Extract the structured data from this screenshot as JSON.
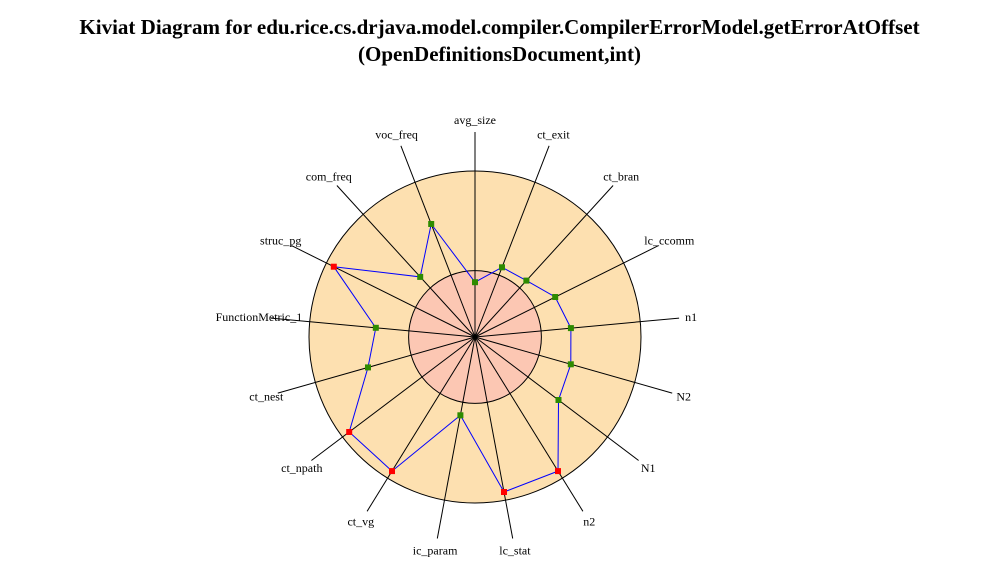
{
  "title_line1": "Kiviat Diagram for edu.rice.cs.drjava.model.compiler.CompilerErrorModel.getErrorAtOffset",
  "title_line2": "(OpenDefinitionsDocument,int)",
  "colors": {
    "outer_fill": "#fde0b0",
    "inner_fill": "#fcc7b3",
    "polygon": "#0000ff",
    "ok_point": "#2e8b00",
    "bad_point": "#ff0000",
    "axis": "#000000"
  },
  "chart_data": {
    "type": "radar",
    "title": "Kiviat Diagram for edu.rice.cs.drjava.model.compiler.CompilerErrorModel.getErrorAtOffset (OpenDefinitionsDocument,int)",
    "range": [
      0,
      1
    ],
    "inner_band": 0.4,
    "axes": [
      {
        "label": "avg_size",
        "value": 0.33,
        "status": "ok"
      },
      {
        "label": "ct_exit",
        "value": 0.45,
        "status": "ok"
      },
      {
        "label": "ct_bran",
        "value": 0.46,
        "status": "ok"
      },
      {
        "label": "lc_ccomm",
        "value": 0.54,
        "status": "ok"
      },
      {
        "label": "n1",
        "value": 0.58,
        "status": "ok"
      },
      {
        "label": "N2",
        "value": 0.6,
        "status": "ok"
      },
      {
        "label": "N1",
        "value": 0.63,
        "status": "ok"
      },
      {
        "label": "n2",
        "value": 0.95,
        "status": "bad"
      },
      {
        "label": "lc_stat",
        "value": 0.95,
        "status": "bad"
      },
      {
        "label": "ic_param",
        "value": 0.48,
        "status": "ok"
      },
      {
        "label": "ct_vg",
        "value": 0.95,
        "status": "bad"
      },
      {
        "label": "ct_npath",
        "value": 0.95,
        "status": "bad"
      },
      {
        "label": "ct_nest",
        "value": 0.67,
        "status": "ok"
      },
      {
        "label": "FunctionMetric_1",
        "value": 0.6,
        "status": "ok"
      },
      {
        "label": "struc_pg",
        "value": 0.95,
        "status": "bad"
      },
      {
        "label": "com_freq",
        "value": 0.49,
        "status": "ok"
      },
      {
        "label": "voc_freq",
        "value": 0.73,
        "status": "ok"
      }
    ]
  }
}
